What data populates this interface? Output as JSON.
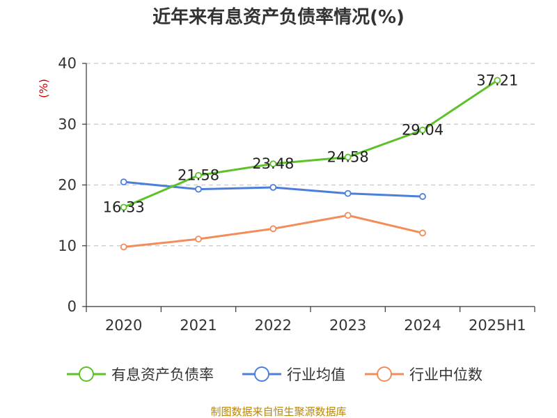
{
  "chart_data": {
    "type": "line",
    "title": "近年来有息资产负债率情况(%)",
    "ylabel": "(%)",
    "xlabel": "",
    "ylim": [
      0,
      40
    ],
    "yticks": [
      0,
      10,
      20,
      30,
      40
    ],
    "grid": true,
    "categories": [
      "2020",
      "2021",
      "2022",
      "2023",
      "2024",
      "2025H1"
    ],
    "series": [
      {
        "name": "有息资产负债率",
        "color": "#5cc228",
        "values": [
          16.33,
          21.58,
          23.48,
          24.58,
          29.04,
          37.21
        ],
        "labeled": true
      },
      {
        "name": "行业均值",
        "color": "#4c7fd9",
        "values": [
          20.5,
          19.3,
          19.6,
          18.6,
          18.1,
          null
        ],
        "labeled": false
      },
      {
        "name": "行业中位数",
        "color": "#f28c5a",
        "values": [
          9.8,
          11.1,
          12.8,
          15.0,
          12.1,
          null
        ],
        "labeled": false
      }
    ],
    "legend_position": "bottom",
    "source": "制图数据来自恒生聚源数据库"
  }
}
